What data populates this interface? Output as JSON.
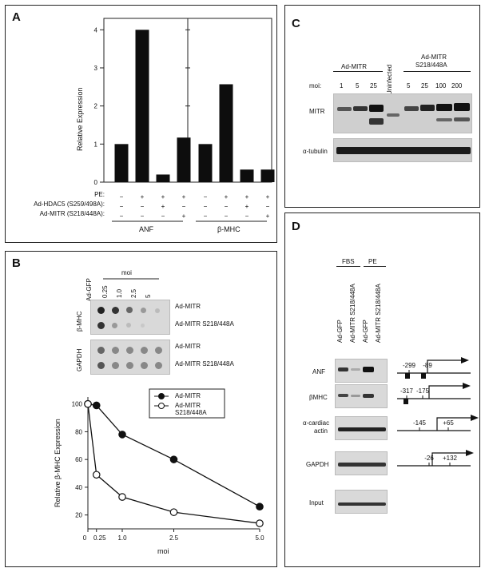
{
  "panelA": {
    "label": "A",
    "ylabel": "Relative Expression",
    "yticks": [
      "0",
      "1",
      "2",
      "3",
      "4"
    ],
    "row_labels": [
      "PE:",
      "Ad-HDAC5 (S259/498A):",
      "Ad-MITR (S218/448A):"
    ],
    "left_signs": [
      [
        "−",
        "+",
        "+",
        "+"
      ],
      [
        "−",
        "−",
        "+",
        "−"
      ],
      [
        "−",
        "−",
        "−",
        "+"
      ]
    ],
    "right_signs": [
      [
        "−",
        "+",
        "+",
        "+"
      ],
      [
        "−",
        "−",
        "+",
        "−"
      ],
      [
        "−",
        "−",
        "−",
        "+"
      ]
    ],
    "group_left": "ANF",
    "group_right": "β-MHC"
  },
  "panelB": {
    "label": "B",
    "lane_labels": [
      "Ad-GFP",
      "0.25",
      "1.0",
      "2.5",
      "5"
    ],
    "moi_label": "moi",
    "blot1_label": "β-MHC",
    "blot2_label": "GAPDH",
    "row_label_1": "Ad-MITR",
    "row_label_2": "Ad-MITR S218/448A",
    "row_label_3": "Ad-MITR",
    "row_label_4": "Ad-MITR S218/448A",
    "ylabel": "Relative β-MHC Expression",
    "xlabel": "moi",
    "xticks": [
      "0",
      "0.25",
      "1.0",
      "2.5",
      "5.0"
    ],
    "yticks": [
      "20",
      "40",
      "60",
      "80",
      "100"
    ],
    "legend1": "Ad-MITR",
    "legend2a": "Ad-MITR",
    "legend2b": "S218/448A"
  },
  "panelC": {
    "label": "C",
    "group1": "Ad-MITR",
    "group2a": "Ad-MITR",
    "group2b": "S218/448A",
    "uninfected": "Uninfected",
    "moi_label": "moi:",
    "moi_values": [
      "1",
      "5",
      "25",
      "5",
      "25",
      "100",
      "200"
    ],
    "row1": "MITR",
    "row2": "α-tubulin"
  },
  "panelD": {
    "label": "D",
    "group1": "FBS",
    "group2": "PE",
    "lanes": [
      "Ad-GFP",
      "Ad-MITR S218/448A",
      "Ad-GFP",
      "Ad-MITR S218/448A"
    ],
    "rows": [
      "ANF",
      "βMHC",
      "α-cardiac\nactin",
      "GAPDH",
      "Input"
    ],
    "anf_marks": [
      "-299",
      "-89"
    ],
    "bmhc_marks": [
      "-317",
      "-175"
    ],
    "actin_marks": [
      "-145",
      "+65"
    ],
    "gapdh_marks": [
      "-26",
      "+132"
    ]
  },
  "chart_data": [
    {
      "type": "bar",
      "panel": "A",
      "ylabel": "Relative Expression",
      "ylim": [
        0,
        4.3
      ],
      "groups": [
        {
          "name": "ANF",
          "values": [
            1.0,
            4.0,
            0.2,
            1.17
          ]
        },
        {
          "name": "β-MHC",
          "values": [
            1.0,
            2.57,
            0.33,
            0.33
          ]
        }
      ]
    },
    {
      "type": "line",
      "panel": "B",
      "xlabel": "moi",
      "ylabel": "Relative β-MHC Expression",
      "x": [
        0,
        0.25,
        1.0,
        2.5,
        5.0
      ],
      "xticks": [
        "0",
        "0.25",
        "1.0",
        "2.5",
        "5.0"
      ],
      "ylim": [
        10,
        105
      ],
      "series": [
        {
          "name": "Ad-MITR",
          "marker": "filled",
          "values": [
            100,
            99,
            78,
            60,
            26
          ]
        },
        {
          "name": "Ad-MITR S218/448A",
          "marker": "open",
          "values": [
            100,
            49,
            33,
            22,
            14
          ]
        }
      ]
    }
  ]
}
